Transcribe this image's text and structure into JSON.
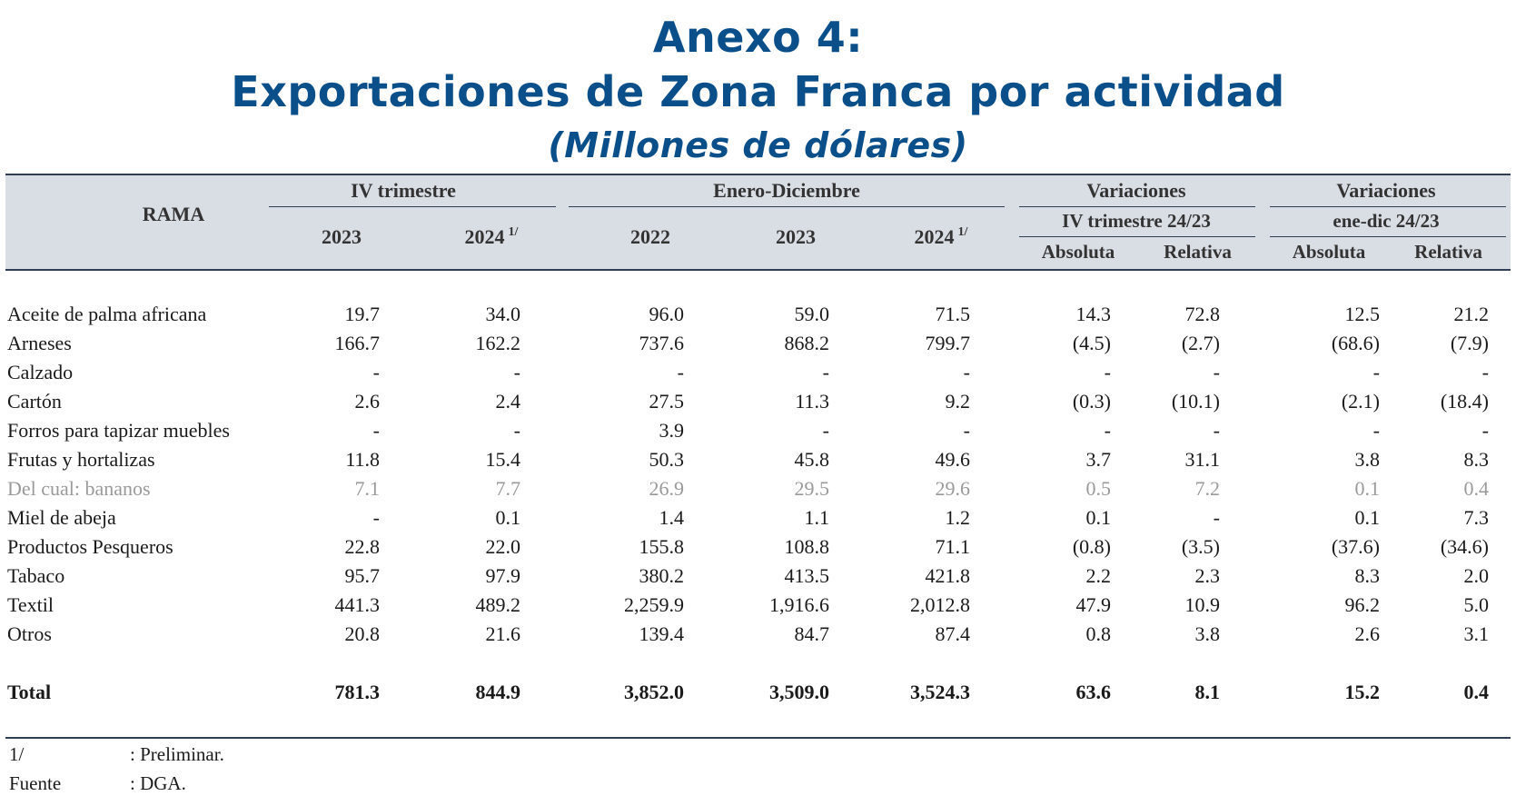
{
  "title": {
    "line1": "Anexo 4:",
    "line2": "Exportaciones de Zona Franca por actividad",
    "line3": "(Millones de dólares)"
  },
  "header": {
    "rama": "RAMA",
    "group_iv": "IV trimestre",
    "group_ene_dic": "Enero-Diciembre",
    "group_var1": "Variaciones",
    "group_var1_sub": "IV trimestre 24/23",
    "group_var2": "Variaciones",
    "group_var2_sub": "ene-dic 24/23",
    "columns": [
      "2023",
      "2024",
      "2022",
      "2023",
      "2024",
      "Absoluta",
      "Relativa",
      "Absoluta",
      "Relativa"
    ],
    "footnote_mark": "1/"
  },
  "rows": [
    {
      "label": "Aceite de palma africana",
      "values": [
        "19.7",
        "34.0",
        "96.0",
        "59.0",
        "71.5",
        "14.3",
        "72.8",
        "12.5",
        "21.2"
      ]
    },
    {
      "label": "Arneses",
      "values": [
        "166.7",
        "162.2",
        "737.6",
        "868.2",
        "799.7",
        "(4.5)",
        "(2.7)",
        "(68.6)",
        "(7.9)"
      ]
    },
    {
      "label": "Calzado",
      "values": [
        "-",
        "-",
        "-",
        "-",
        "-",
        "-",
        "-",
        "-",
        "-"
      ]
    },
    {
      "label": "Cartón",
      "values": [
        "2.6",
        "2.4",
        "27.5",
        "11.3",
        "9.2",
        "(0.3)",
        "(10.1)",
        "(2.1)",
        "(18.4)"
      ]
    },
    {
      "label": "Forros para tapizar muebles",
      "values": [
        "-",
        "-",
        "3.9",
        "-",
        "-",
        "-",
        "-",
        "-",
        "-"
      ]
    },
    {
      "label": "Frutas y hortalizas",
      "values": [
        "11.8",
        "15.4",
        "50.3",
        "45.8",
        "49.6",
        "3.7",
        "31.1",
        "3.8",
        "8.3"
      ]
    },
    {
      "label": "Del cual: bananos",
      "values": [
        "7.1",
        "7.7",
        "26.9",
        "29.5",
        "29.6",
        "0.5",
        "7.2",
        "0.1",
        "0.4"
      ]
    },
    {
      "label": "Miel de abeja",
      "values": [
        "-",
        "0.1",
        "1.4",
        "1.1",
        "1.2",
        "0.1",
        "-",
        "0.1",
        "7.3"
      ]
    },
    {
      "label": "Productos Pesqueros",
      "values": [
        "22.8",
        "22.0",
        "155.8",
        "108.8",
        "71.1",
        "(0.8)",
        "(3.5)",
        "(37.6)",
        "(34.6)"
      ]
    },
    {
      "label": "Tabaco",
      "values": [
        "95.7",
        "97.9",
        "380.2",
        "413.5",
        "421.8",
        "2.2",
        "2.3",
        "8.3",
        "2.0"
      ]
    },
    {
      "label": "Textil",
      "values": [
        "441.3",
        "489.2",
        "2,259.9",
        "1,916.6",
        "2,012.8",
        "47.9",
        "10.9",
        "96.2",
        "5.0"
      ]
    },
    {
      "label": "Otros",
      "values": [
        "20.8",
        "21.6",
        "139.4",
        "84.7",
        "87.4",
        "0.8",
        "3.8",
        "2.6",
        "3.1"
      ]
    }
  ],
  "total": {
    "label": "Total",
    "values": [
      "781.3",
      "844.9",
      "3,852.0",
      "3,509.0",
      "3,524.3",
      "63.6",
      "8.1",
      "15.2",
      "0.4"
    ]
  },
  "footnotes": [
    {
      "key": "1/",
      "text": ": Preliminar."
    },
    {
      "key": "Fuente",
      "text": ": DGA."
    }
  ],
  "colors": {
    "title": "#0b4f8a",
    "header_band": "#d9dde4",
    "rule": "#2f3e55",
    "subrow": "#9a9a9a"
  }
}
